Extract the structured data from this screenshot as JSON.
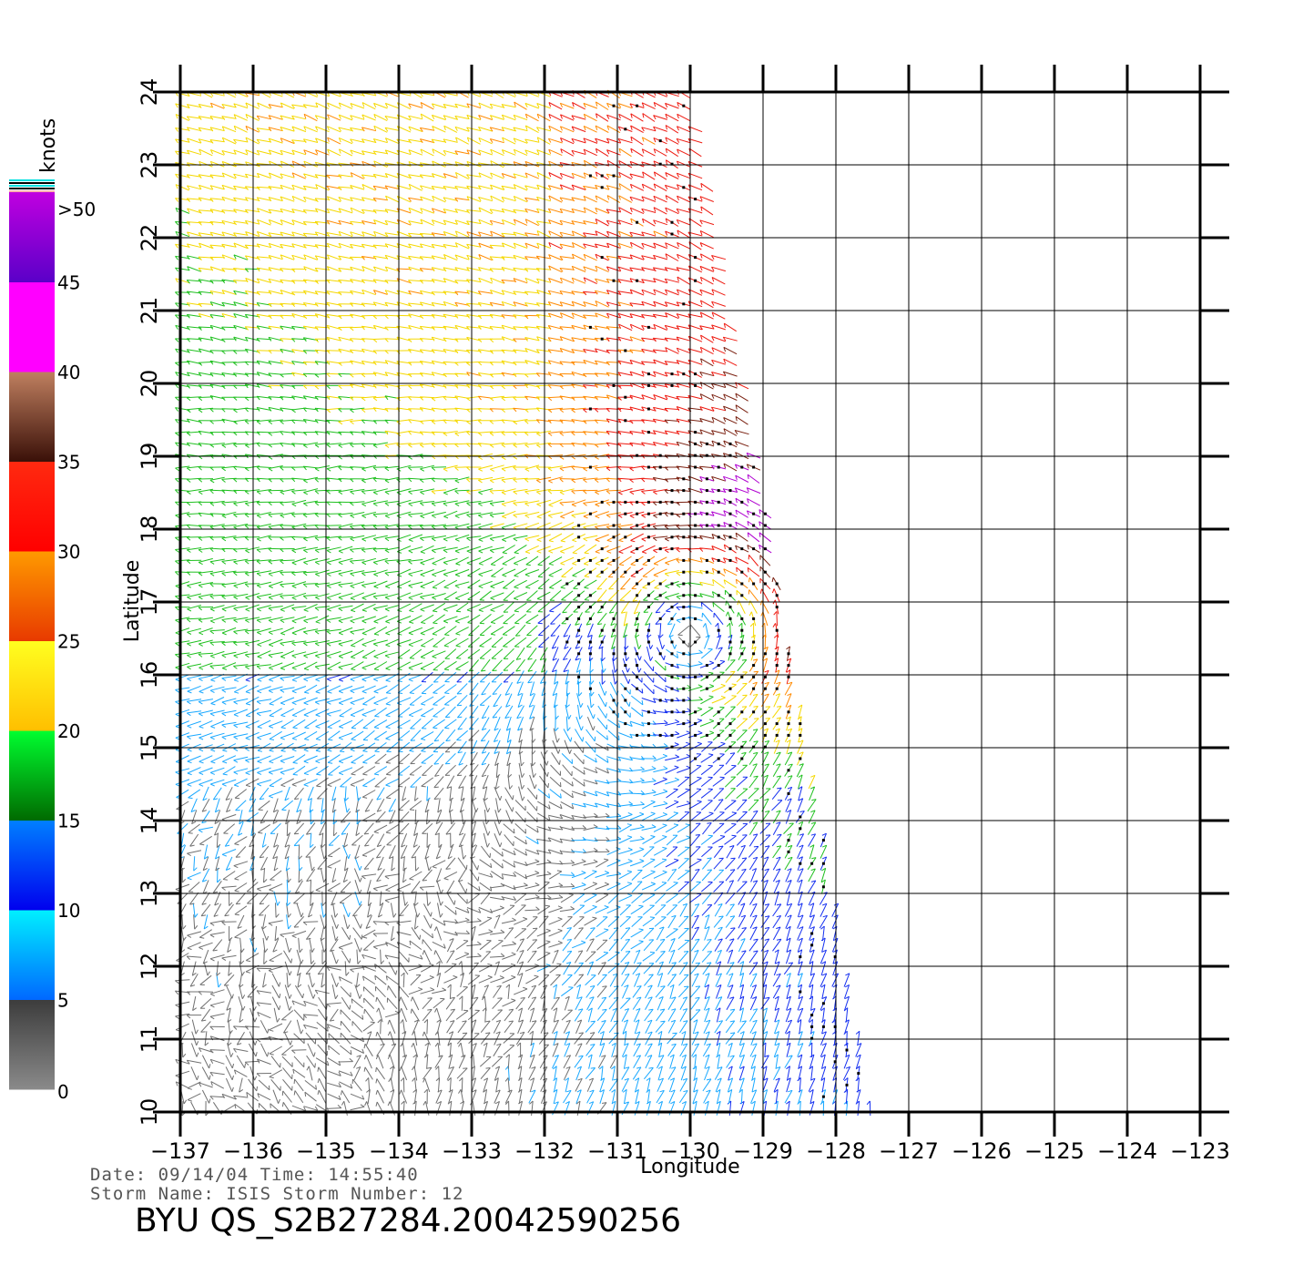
{
  "colorbar": {
    "unit": "knots",
    "bands": [
      {
        "from": 0,
        "to": 5,
        "top": "#3c3c3c",
        "bottom": "#8a8a8a"
      },
      {
        "from": 5,
        "to": 10,
        "top": "#00f0ff",
        "bottom": "#0068ff"
      },
      {
        "from": 10,
        "to": 15,
        "top": "#0080ff",
        "bottom": "#0000ee"
      },
      {
        "from": 15,
        "to": 20,
        "top": "#00ff30",
        "bottom": "#006a00"
      },
      {
        "from": 20,
        "to": 25,
        "top": "#ffff20",
        "bottom": "#ffbf00"
      },
      {
        "from": 25,
        "to": 30,
        "top": "#ff9a00",
        "bottom": "#e83a00"
      },
      {
        "from": 30,
        "to": 35,
        "top": "#ff2a10",
        "bottom": "#ff0000"
      },
      {
        "from": 35,
        "to": 40,
        "top": "#c08060",
        "bottom": "#3a1008"
      },
      {
        "from": 40,
        "to": 45,
        "top": "#ff00ff",
        "bottom": "#ff00ff"
      },
      {
        "from": 45,
        "to": 50,
        "top": "#c000e0",
        "bottom": "#5a00c8"
      }
    ],
    "labels": [
      "0",
      "5",
      "10",
      "15",
      "20",
      "25",
      "30",
      "35",
      "40",
      "45",
      ">50"
    ]
  },
  "axes": {
    "x_label": "Longitude",
    "y_label": "Latitude",
    "x_ticks": [
      "−137",
      "−136",
      "−135",
      "−134",
      "−133",
      "−132",
      "−131",
      "−130",
      "−129",
      "−128",
      "−127",
      "−126",
      "−125",
      "−124",
      "−123"
    ],
    "y_ticks": [
      "10",
      "11",
      "12",
      "13",
      "14",
      "15",
      "16",
      "17",
      "18",
      "19",
      "20",
      "21",
      "22",
      "23",
      "24"
    ],
    "lon_range": [
      -137,
      -123
    ],
    "lat_range": [
      10,
      24
    ]
  },
  "footer": {
    "date_line": "Date: 09/14/04   Time: 14:55:40",
    "storm_line": "Storm Name: ISIS   Storm Number: 12",
    "product_id": "BYU QS_S2B27284.20042590256"
  },
  "swath": {
    "edge_top_lon": -130.0,
    "edge_bottom_lon": -127.5,
    "storm_center": [
      -129.6,
      17.0
    ]
  },
  "colors": {
    "grid": "#000000",
    "background": "#ffffff"
  }
}
